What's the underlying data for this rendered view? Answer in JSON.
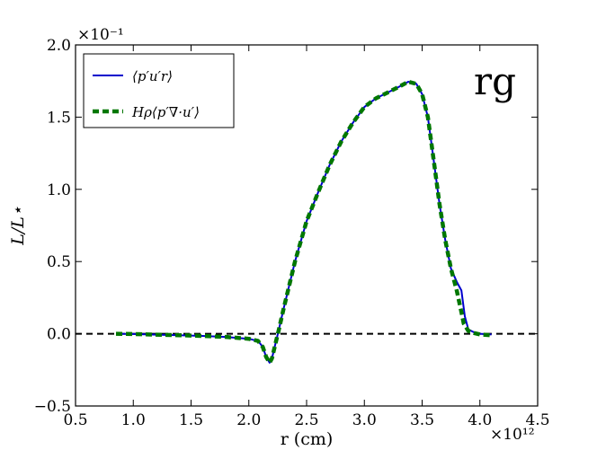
{
  "chart_data": {
    "type": "line",
    "panel_label": "rg",
    "xlabel": "r (cm)",
    "ylabel": "L/L⋆",
    "x_multiplier": "×10¹²",
    "y_multiplier": "×10⁻¹",
    "xlim": [
      0.5,
      4.5
    ],
    "ylim": [
      -0.5,
      2.0
    ],
    "xticks": [
      0.5,
      1.0,
      1.5,
      2.0,
      2.5,
      3.0,
      3.5,
      4.0,
      4.5
    ],
    "yticks": [
      -0.5,
      0.0,
      0.5,
      1.0,
      1.5,
      2.0
    ],
    "xtick_labels": [
      "0.5",
      "1.0",
      "1.5",
      "2.0",
      "2.5",
      "3.0",
      "3.5",
      "4.0",
      "4.5"
    ],
    "ytick_labels": [
      "−0.5",
      "0.0",
      "0.5",
      "1.0",
      "1.5",
      "2.0"
    ],
    "grid": false,
    "legend_position": "top-left",
    "zero_line": {
      "y": 0.0,
      "style": "dashed",
      "color": "#000000"
    },
    "series": [
      {
        "name": "⟨p′u′r⟩",
        "color": "#0000cc",
        "style": "solid",
        "x": [
          0.85,
          1.0,
          1.2,
          1.4,
          1.6,
          1.8,
          2.0,
          2.08,
          2.12,
          2.15,
          2.18,
          2.2,
          2.23,
          2.26,
          2.3,
          2.4,
          2.5,
          2.6,
          2.7,
          2.8,
          2.9,
          3.0,
          3.1,
          3.2,
          3.3,
          3.38,
          3.45,
          3.5,
          3.55,
          3.6,
          3.65,
          3.7,
          3.75,
          3.8,
          3.84,
          3.87,
          3.9,
          3.95,
          4.0,
          4.1
        ],
        "y": [
          0.0,
          -0.002,
          -0.006,
          -0.01,
          -0.015,
          -0.022,
          -0.035,
          -0.05,
          -0.09,
          -0.16,
          -0.2,
          -0.17,
          -0.07,
          0.03,
          0.17,
          0.5,
          0.78,
          0.98,
          1.17,
          1.33,
          1.46,
          1.57,
          1.63,
          1.67,
          1.71,
          1.745,
          1.73,
          1.66,
          1.5,
          1.2,
          0.9,
          0.65,
          0.45,
          0.36,
          0.3,
          0.12,
          0.03,
          0.01,
          0.0,
          -0.005
        ]
      },
      {
        "name": "Hρ⟨p′∇·u′⟩",
        "color": "#007700",
        "style": "dashed",
        "x": [
          0.85,
          1.0,
          1.2,
          1.4,
          1.6,
          1.8,
          2.0,
          2.08,
          2.12,
          2.15,
          2.18,
          2.2,
          2.23,
          2.26,
          2.3,
          2.4,
          2.5,
          2.6,
          2.7,
          2.8,
          2.9,
          3.0,
          3.1,
          3.2,
          3.3,
          3.38,
          3.45,
          3.5,
          3.55,
          3.6,
          3.65,
          3.7,
          3.75,
          3.8,
          3.84,
          3.86,
          3.9,
          3.95,
          4.0,
          4.1
        ],
        "y": [
          0.0,
          -0.002,
          -0.006,
          -0.01,
          -0.015,
          -0.022,
          -0.035,
          -0.05,
          -0.09,
          -0.16,
          -0.2,
          -0.17,
          -0.07,
          0.03,
          0.17,
          0.5,
          0.78,
          0.98,
          1.17,
          1.33,
          1.46,
          1.57,
          1.63,
          1.67,
          1.71,
          1.745,
          1.73,
          1.66,
          1.5,
          1.2,
          0.9,
          0.65,
          0.45,
          0.3,
          0.15,
          0.07,
          0.02,
          0.005,
          -0.005,
          -0.01
        ]
      }
    ]
  }
}
